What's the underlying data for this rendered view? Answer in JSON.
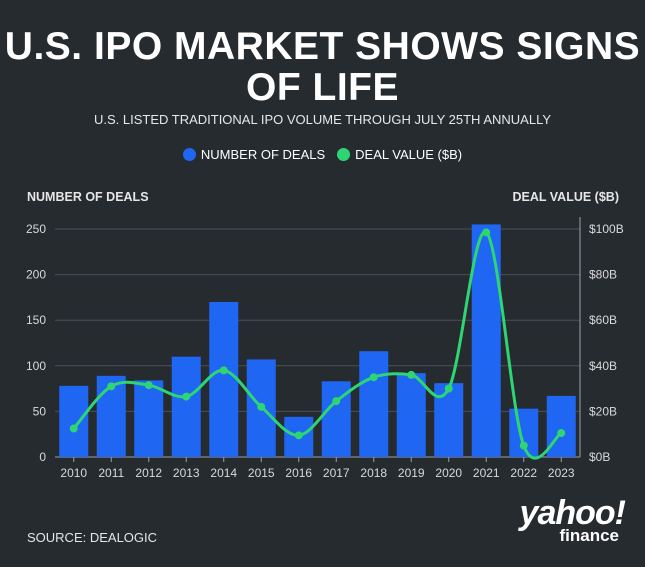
{
  "title_line1": "U.S. IPO MARKET SHOWS SIGNS",
  "title_line2": "OF LIFE",
  "subtitle": "U.S. LISTED TRADITIONAL IPO VOLUME THROUGH JULY 25TH ANNUALLY",
  "legend": [
    {
      "label": "NUMBER OF DEALS",
      "color": "#1f66f2"
    },
    {
      "label": "DEAL VALUE ($B)",
      "color": "#2ed573"
    }
  ],
  "source": "SOURCE: DEALOGIC",
  "logo": {
    "line1": "yahoo!",
    "line2": "finance"
  },
  "chart_data": {
    "type": "bar",
    "categories": [
      "2010",
      "2011",
      "2012",
      "2013",
      "2014",
      "2015",
      "2016",
      "2017",
      "2018",
      "2019",
      "2020",
      "2021",
      "2022",
      "2023"
    ],
    "series": [
      {
        "name": "NUMBER OF DEALS",
        "type": "bar",
        "axis": "left",
        "color": "#1f66f2",
        "values": [
          78,
          89,
          84,
          110,
          170,
          107,
          44,
          83,
          116,
          92,
          81,
          255,
          53,
          67
        ]
      },
      {
        "name": "DEAL VALUE ($B)",
        "type": "line",
        "axis": "right",
        "color": "#2ed573",
        "values": [
          12.5,
          31,
          31.5,
          26.5,
          38,
          22,
          9.5,
          24.5,
          35,
          36,
          30,
          98.5,
          5,
          10.5
        ]
      }
    ],
    "ylabel_left": "NUMBER OF DEALS",
    "ylabel_right": "DEAL VALUE ($B)",
    "ylim_left": [
      0,
      250
    ],
    "ylim_right": [
      0,
      100
    ],
    "yticks_left": [
      "0",
      "50",
      "100",
      "150",
      "200",
      "250"
    ],
    "yticks_right": [
      "$0B",
      "$20B",
      "$40B",
      "$60B",
      "$80B",
      "$100B"
    ],
    "grid": true
  }
}
